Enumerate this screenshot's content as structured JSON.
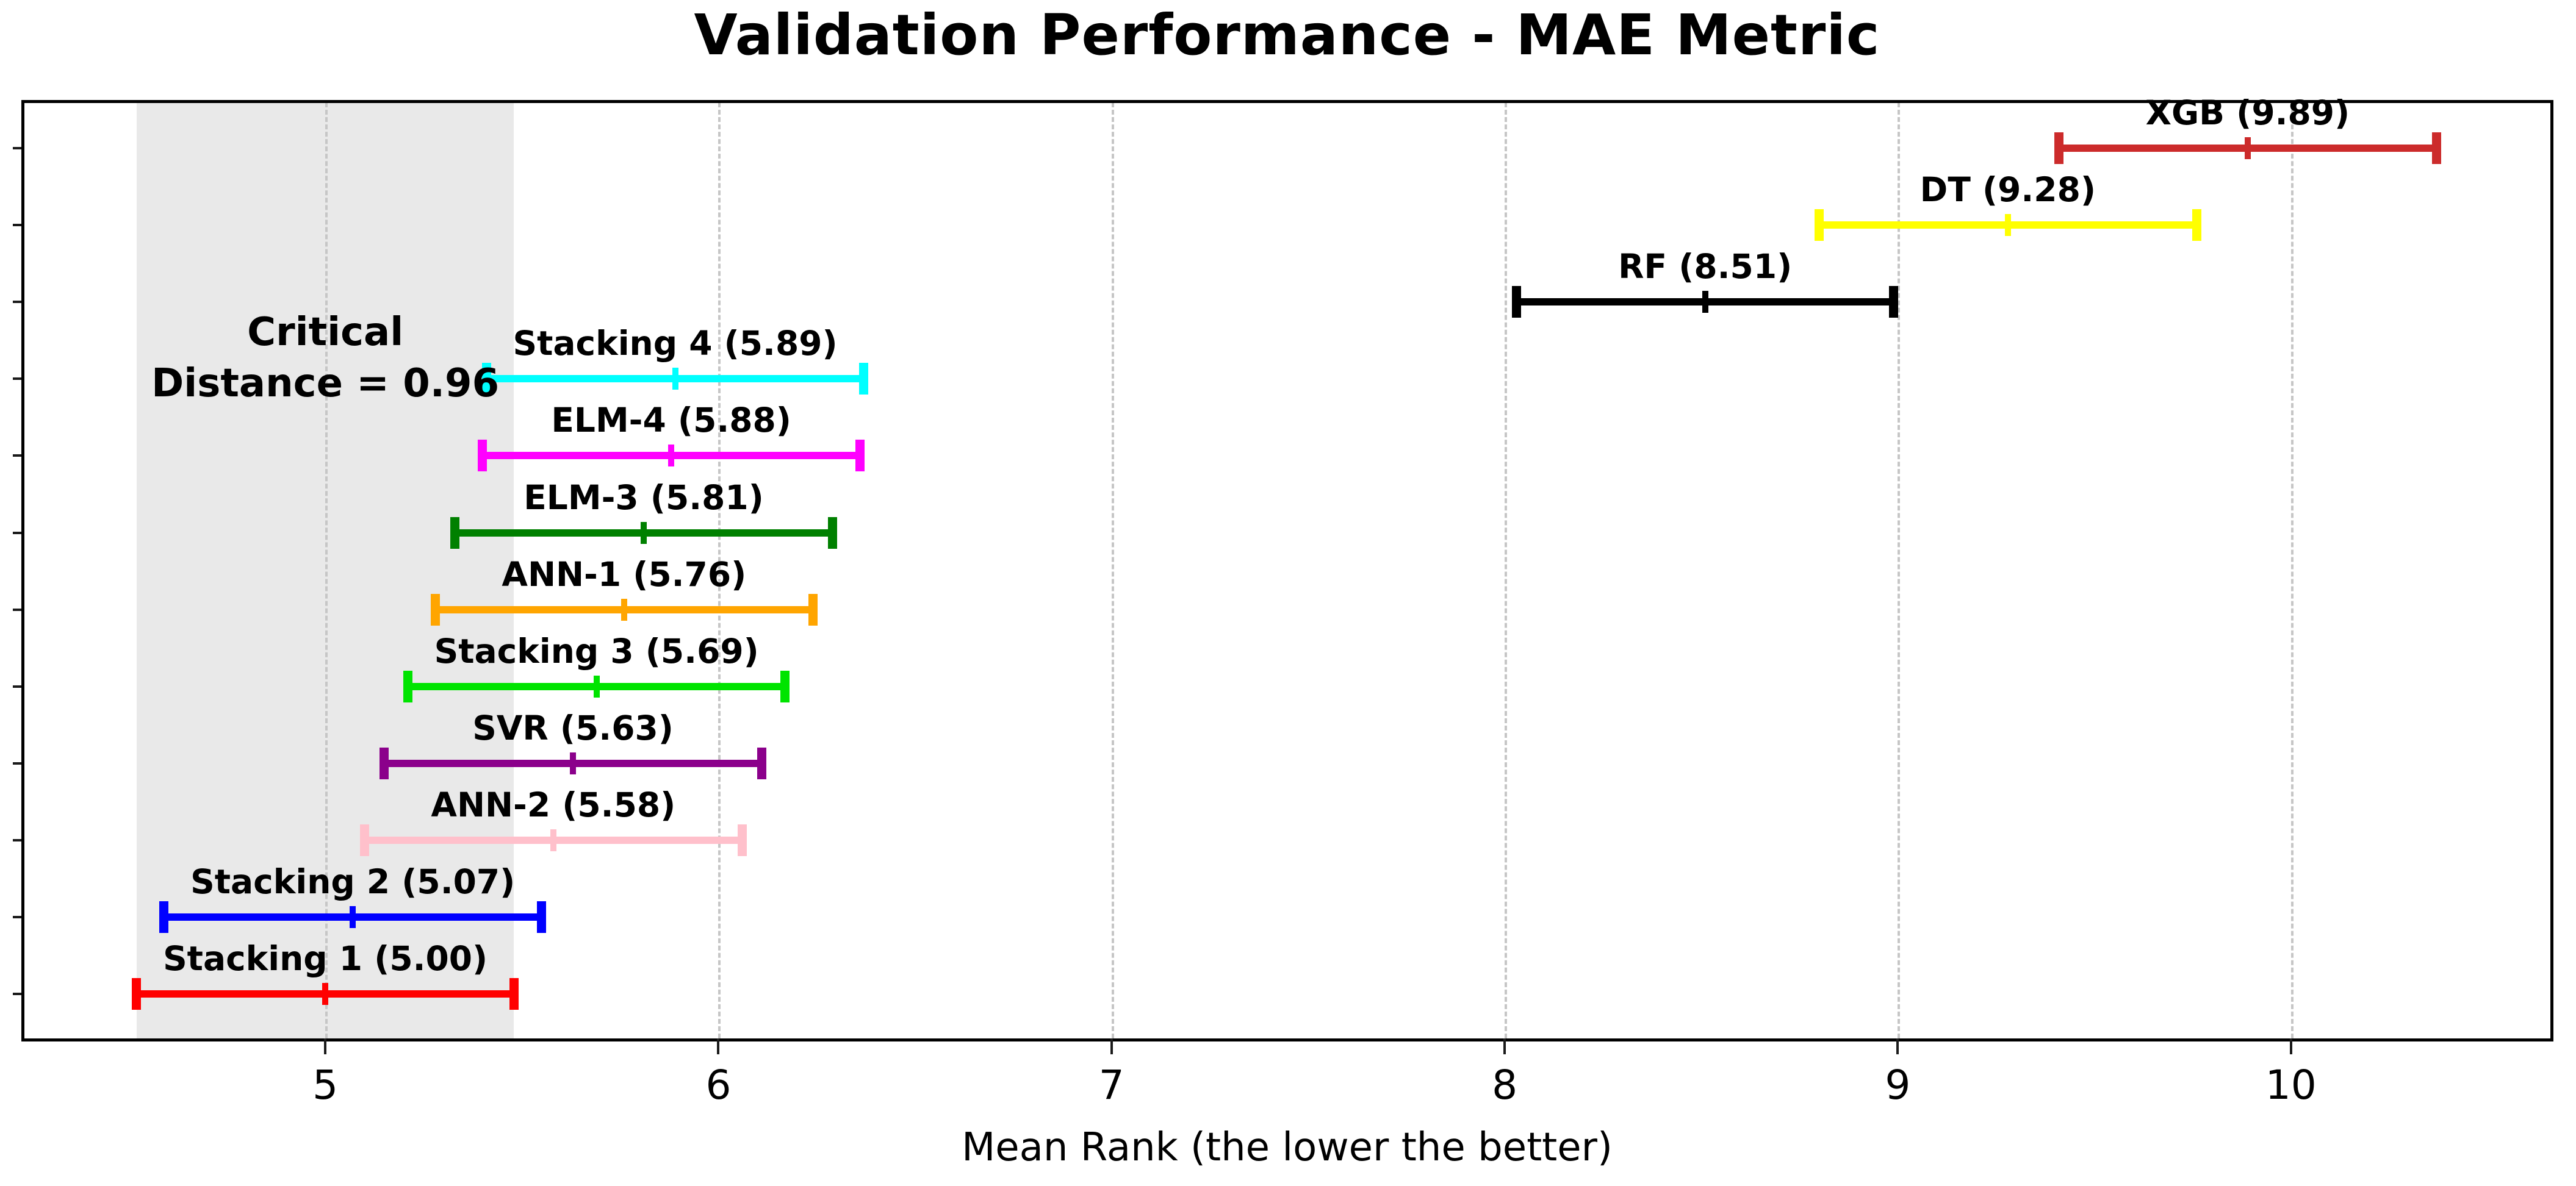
{
  "title": "Validation Performance - MAE Metric",
  "xlabel": "Mean Rank (the lower the better)",
  "cd_annotation": {
    "line1": "Critical",
    "line2": "Distance = 0.96"
  },
  "chart_data": {
    "type": "errorbar",
    "title": "Validation Performance - MAE Metric",
    "xlabel": "Mean Rank (the lower the better)",
    "xlim": [
      4.23,
      10.66
    ],
    "xticks": [
      5,
      6,
      7,
      8,
      9,
      10
    ],
    "grid": true,
    "legend": false,
    "critical_distance": 0.96,
    "error_half_width": 0.48,
    "shaded_band": {
      "from": 4.52,
      "to": 5.48,
      "color": "#e9e9e9",
      "annotation_x": 5.0
    },
    "models": [
      {
        "name": "XGB",
        "mean_rank": 9.89,
        "label": "XGB (9.89)",
        "color": "#cc2b2b"
      },
      {
        "name": "DT",
        "mean_rank": 9.28,
        "label": "DT (9.28)",
        "color": "#ffff00"
      },
      {
        "name": "RF",
        "mean_rank": 8.51,
        "label": "RF (8.51)",
        "color": "#000000"
      },
      {
        "name": "Stacking 4",
        "mean_rank": 5.89,
        "label": "Stacking 4 (5.89)",
        "color": "#00ffff"
      },
      {
        "name": "ELM-4",
        "mean_rank": 5.88,
        "label": "ELM-4 (5.88)",
        "color": "#ff00ff"
      },
      {
        "name": "ELM-3",
        "mean_rank": 5.81,
        "label": "ELM-3 (5.81)",
        "color": "#008000"
      },
      {
        "name": "ANN-1",
        "mean_rank": 5.76,
        "label": "ANN-1 (5.76)",
        "color": "#ffa500"
      },
      {
        "name": "Stacking 3",
        "mean_rank": 5.69,
        "label": "Stacking 3 (5.69)",
        "color": "#00e400"
      },
      {
        "name": "SVR",
        "mean_rank": 5.63,
        "label": "SVR (5.63)",
        "color": "#8b008b"
      },
      {
        "name": "ANN-2",
        "mean_rank": 5.58,
        "label": "ANN-2 (5.58)",
        "color": "#ffc0cb"
      },
      {
        "name": "Stacking 2",
        "mean_rank": 5.07,
        "label": "Stacking 2 (5.07)",
        "color": "#0000ff"
      },
      {
        "name": "Stacking 1",
        "mean_rank": 5.0,
        "label": "Stacking 1 (5.00)",
        "color": "#ff0000"
      }
    ]
  }
}
